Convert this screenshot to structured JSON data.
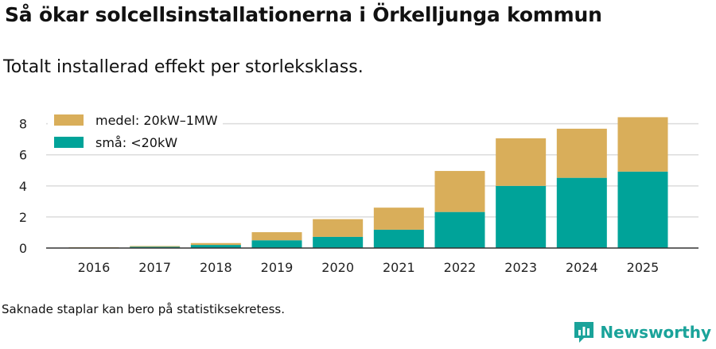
{
  "header": {
    "title": "Så ökar solcellsinstallationerna i Örkelljunga kommun",
    "subtitle": "Totalt installerad effekt per storleksklass."
  },
  "footnote": "Saknade staplar kan bero på statistiksekretess.",
  "brand": {
    "name": "Newsworthy",
    "icon": "newsworthy-logo-icon",
    "color": "#1aa39a"
  },
  "chart_data": {
    "type": "bar",
    "stacked": true,
    "title": "Så ökar solcellsinstallationerna i Örkelljunga kommun",
    "subtitle": "Totalt installerad effekt per storleksklass.",
    "xlabel": "",
    "ylabel": "",
    "ylim": [
      0,
      8.8
    ],
    "yticks": [
      0,
      2,
      4,
      6,
      8
    ],
    "grid": true,
    "legend_position": "top-left",
    "categories": [
      "2016",
      "2017",
      "2018",
      "2019",
      "2020",
      "2021",
      "2022",
      "2023",
      "2024",
      "2025"
    ],
    "series": [
      {
        "name": "små: <20kW",
        "color": "#00a399",
        "values": [
          0.03,
          0.08,
          0.2,
          0.5,
          0.72,
          1.18,
          2.32,
          4.0,
          4.52,
          4.92
        ]
      },
      {
        "name": "medel: 20kW–1MW",
        "color": "#d9ae5a",
        "values": [
          0.02,
          0.05,
          0.12,
          0.52,
          1.14,
          1.42,
          2.64,
          3.06,
          3.16,
          3.5
        ]
      }
    ]
  }
}
